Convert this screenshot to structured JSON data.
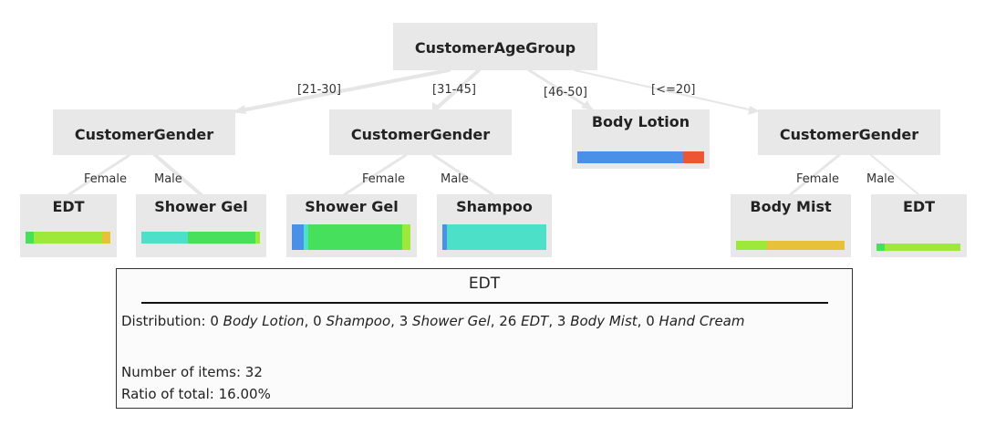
{
  "colors": {
    "body_lotion": "#4a8fe8",
    "shampoo": "#4de0c8",
    "shower_gel": "#46e05c",
    "edt": "#9ee83a",
    "body_mist": "#e8c13a",
    "hand_cream": "#ee5533",
    "node_bg": "#e8e8e8",
    "edge": "#e6e6e6"
  },
  "root": {
    "label": "CustomerAgeGroup"
  },
  "age_edges": [
    "[21-30]",
    "[31-45]",
    "[46-50]",
    "[<=20]"
  ],
  "gender_edges": [
    "Female",
    "Male"
  ],
  "nodes": {
    "n2130": {
      "label": "CustomerGender"
    },
    "n3145": {
      "label": "CustomerGender"
    },
    "n4650": {
      "label": "Body Lotion",
      "dist": [
        15,
        0,
        0,
        0,
        0,
        3
      ]
    },
    "nle20": {
      "label": "CustomerGender"
    },
    "l1": {
      "label": "EDT",
      "dist": [
        0,
        0,
        3,
        26,
        3,
        0
      ]
    },
    "l2": {
      "label": "Shower Gel",
      "dist": [
        0,
        20,
        29,
        2,
        0,
        0
      ]
    },
    "l3": {
      "label": "Shower Gel",
      "dist": [
        3,
        1,
        23,
        2,
        0,
        0
      ]
    },
    "l4": {
      "label": "Shampoo",
      "dist": [
        1,
        24,
        0,
        0,
        0,
        0
      ]
    },
    "l5": {
      "label": "Body Mist",
      "dist": [
        0,
        0,
        0,
        10,
        25,
        0
      ]
    },
    "l6": {
      "label": "EDT",
      "dist": [
        0,
        0,
        1,
        9,
        0,
        0
      ]
    }
  },
  "info": {
    "title": "EDT",
    "dist_prefix": "Distribution: ",
    "items": [
      {
        "count": "0",
        "name": "Body Lotion"
      },
      {
        "count": "0",
        "name": "Shampoo"
      },
      {
        "count": "3",
        "name": "Shower Gel"
      },
      {
        "count": "26",
        "name": "EDT"
      },
      {
        "count": "3",
        "name": "Body Mist"
      },
      {
        "count": "0",
        "name": "Hand Cream"
      }
    ],
    "items_line": "Number of items: 32",
    "ratio_line": "Ratio of total: 16.00%"
  }
}
